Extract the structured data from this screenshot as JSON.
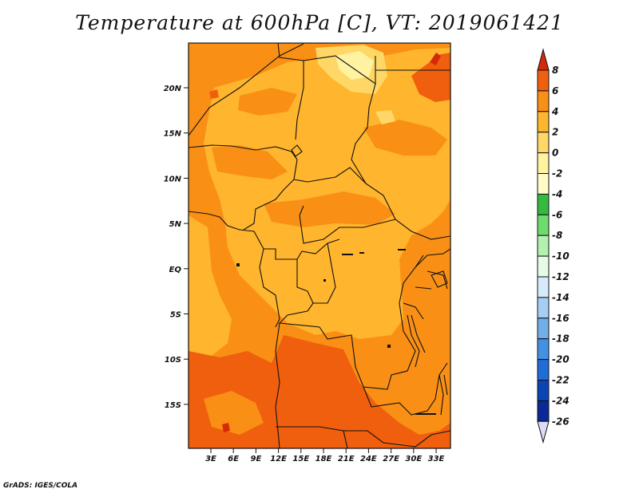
{
  "map": {
    "title": "Temperature at 600hPa [C], VT: 2019061421",
    "credit": "GrADS: IGES/COLA",
    "lat_ticks": [
      "20N",
      "15N",
      "10N",
      "5N",
      "EQ",
      "5S",
      "10S",
      "15S"
    ],
    "lon_ticks": [
      "3E",
      "6E",
      "9E",
      "12E",
      "15E",
      "18E",
      "21E",
      "24E",
      "27E",
      "30E",
      "33E"
    ],
    "colorbar": {
      "levels": [
        "8",
        "6",
        "4",
        "2",
        "0",
        "-2",
        "-4",
        "-6",
        "-8",
        "-10",
        "-12",
        "-14",
        "-16",
        "-18",
        "-20",
        "-22",
        "-24",
        "-26"
      ],
      "colors": [
        "#d42a08",
        "#f05f0e",
        "#f99015",
        "#ffb52d",
        "#ffd767",
        "#fff2a0",
        "#fffcc8",
        "#35b93f",
        "#6edb6e",
        "#b4f0b0",
        "#e6fbe6",
        "#d6ebfa",
        "#a5cff2",
        "#72aee8",
        "#4490e2",
        "#1f6dd6",
        "#0b45b5",
        "#092a96",
        "#0a1166",
        "#dcdcf5"
      ]
    },
    "palette": {
      "warm_8": "#d42a08",
      "warm_6": "#f05f0e",
      "warm_4": "#f99015",
      "warm_2": "#ffb52d",
      "warm_0": "#ffd767",
      "cool_m2": "#fff2a0"
    }
  }
}
